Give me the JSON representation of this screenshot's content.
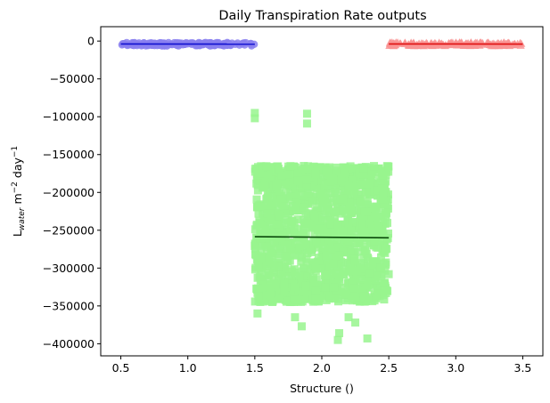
{
  "chart_data": {
    "type": "scatter",
    "title": "Daily Transpiration Rate outputs",
    "xlabel": "Structure ()",
    "ylabel": {
      "main": "L",
      "sub": "water",
      "unit": " m",
      "exp1": "−2",
      "day": " day",
      "exp2": "−1"
    },
    "xlim": [
      0.35,
      3.65
    ],
    "ylim": [
      -416000,
      19000
    ],
    "xticks": [
      {
        "value": 0.5,
        "label": "0.5"
      },
      {
        "value": 1.0,
        "label": "1.0"
      },
      {
        "value": 1.5,
        "label": "1.5"
      },
      {
        "value": 2.0,
        "label": "2.0"
      },
      {
        "value": 2.5,
        "label": "2.5"
      },
      {
        "value": 3.0,
        "label": "3.0"
      },
      {
        "value": 3.5,
        "label": "3.5"
      }
    ],
    "yticks": [
      {
        "value": 0,
        "label": "0"
      },
      {
        "value": -50000,
        "label": "−50000"
      },
      {
        "value": -100000,
        "label": "−100000"
      },
      {
        "value": -150000,
        "label": "−150000"
      },
      {
        "value": -200000,
        "label": "−200000"
      },
      {
        "value": -250000,
        "label": "−250000"
      },
      {
        "value": -300000,
        "label": "−300000"
      },
      {
        "value": -350000,
        "label": "−350000"
      },
      {
        "value": -400000,
        "label": "−400000"
      }
    ],
    "grid": false,
    "series": [
      {
        "marker": "circle",
        "color": "#8a80f0",
        "x_range": [
          0.5,
          1.5
        ],
        "y_range": [
          -6500,
          -2000
        ],
        "trend": [
          [
            0.5,
            -3800
          ],
          [
            1.5,
            -4000
          ]
        ],
        "trend_color": "#1010d0"
      },
      {
        "marker": "square",
        "color": "#98f48e",
        "x_range": [
          1.5,
          2.5
        ],
        "y_range": [
          -345000,
          -165000
        ],
        "outliers": [
          [
            1.5,
            -95000
          ],
          [
            1.5,
            -102000
          ],
          [
            1.89,
            -96000
          ],
          [
            1.89,
            -109000
          ],
          [
            2.12,
            -395000
          ],
          [
            2.13,
            -386000
          ],
          [
            2.34,
            -393000
          ],
          [
            1.85,
            -377000
          ],
          [
            1.52,
            -360000
          ],
          [
            2.2,
            -365000
          ],
          [
            1.8,
            -365000
          ],
          [
            2.25,
            -372000
          ]
        ],
        "trend": [
          [
            1.5,
            -258500
          ],
          [
            2.5,
            -260000
          ]
        ],
        "trend_color": "#0a4a0a"
      },
      {
        "marker": "triangle",
        "color": "#f99494",
        "x_range": [
          2.5,
          3.5
        ],
        "y_range": [
          -6500,
          -2000
        ],
        "trend": [
          [
            2.5,
            -3800
          ],
          [
            3.5,
            -4000
          ]
        ],
        "trend_color": "#e01010"
      }
    ]
  }
}
